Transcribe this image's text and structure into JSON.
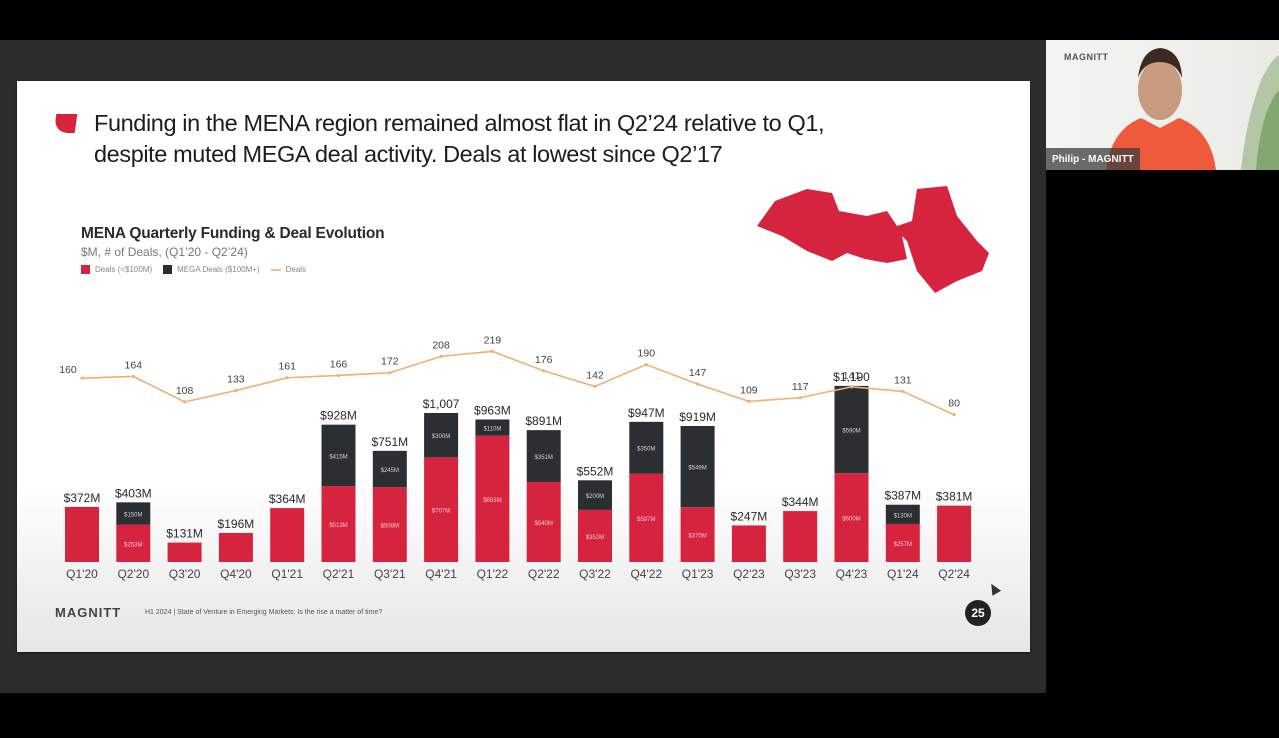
{
  "slide": {
    "title_line1": "Funding in the MENA region remained almost flat in Q2’24 relative to Q1,",
    "title_line2": "despite muted MEGA deal activity. Deals at lowest since Q2’17",
    "footer_logo": "MAGNITT",
    "footer_text": "H1 2024 | State of Venture in Emerging Markets: Is the rise a matter of time?",
    "page_number": "25",
    "accent_color": "#d6243f",
    "map_icon": "mena-region-map"
  },
  "webcam": {
    "participant_name": "Philip - MAGNITT",
    "background_logo": "MAGNITT"
  },
  "chart_data": {
    "type": "bar",
    "stacked": true,
    "title": "MENA Quarterly Funding & Deal Evolution",
    "subtitle": "$M, # of Deals, (Q1’20 - Q2’24)",
    "legend": [
      "Deals (<$100M)",
      "MEGA Deals ($100M+)",
      "Deals"
    ],
    "legend_position": "top-left",
    "categories": [
      "Q1'20",
      "Q2'20",
      "Q3'20",
      "Q4'20",
      "Q1'21",
      "Q2'21",
      "Q3'21",
      "Q4'21",
      "Q1'22",
      "Q2'22",
      "Q3'22",
      "Q4'22",
      "Q1'23",
      "Q2'23",
      "Q3'23",
      "Q4'23",
      "Q1'24",
      "Q2'24"
    ],
    "series": [
      {
        "name": "Deals (<$100M)",
        "color": "#d6243f",
        "values": [
          372,
          253,
          131,
          196,
          364,
          513,
          506,
          707,
          853,
          540,
          352,
          597,
          370,
          247,
          344,
          600,
          257,
          381
        ],
        "labels": [
          "",
          "$253M",
          "",
          "",
          "",
          "$513M",
          "$506M",
          "$707M",
          "$853M",
          "$540M",
          "$352M",
          "$597M",
          "$370M",
          "",
          "",
          "$600M",
          "$257M",
          ""
        ]
      },
      {
        "name": "MEGA Deals ($100M+)",
        "color": "#2b2f31",
        "values": [
          0,
          150,
          0,
          0,
          0,
          415,
          245,
          300,
          110,
          351,
          200,
          350,
          549,
          0,
          0,
          590,
          130,
          0
        ],
        "labels": [
          "",
          "$150M",
          "",
          "",
          "",
          "$415M",
          "$245M",
          "$300M",
          "$110M",
          "$351M",
          "$200M",
          "$350M",
          "$549M",
          "",
          "",
          "$590M",
          "$130M",
          ""
        ]
      },
      {
        "name": "Deals",
        "type": "line",
        "color": "#f0b070",
        "values": [
          160,
          164,
          108,
          133,
          161,
          166,
          172,
          208,
          219,
          176,
          142,
          190,
          147,
          109,
          117,
          141,
          131,
          80
        ]
      }
    ],
    "totals_labels": [
      "$372M",
      "$403M",
      "$131M",
      "$196M",
      "$364M",
      "$928M",
      "$751M",
      "$1,007",
      "$963M",
      "$891M",
      "$552M",
      "$947M",
      "$919M",
      "$247M",
      "$344M",
      "$1,190",
      "$387M",
      "$381M"
    ],
    "ylabel": "",
    "xlabel": "",
    "grid": false
  }
}
